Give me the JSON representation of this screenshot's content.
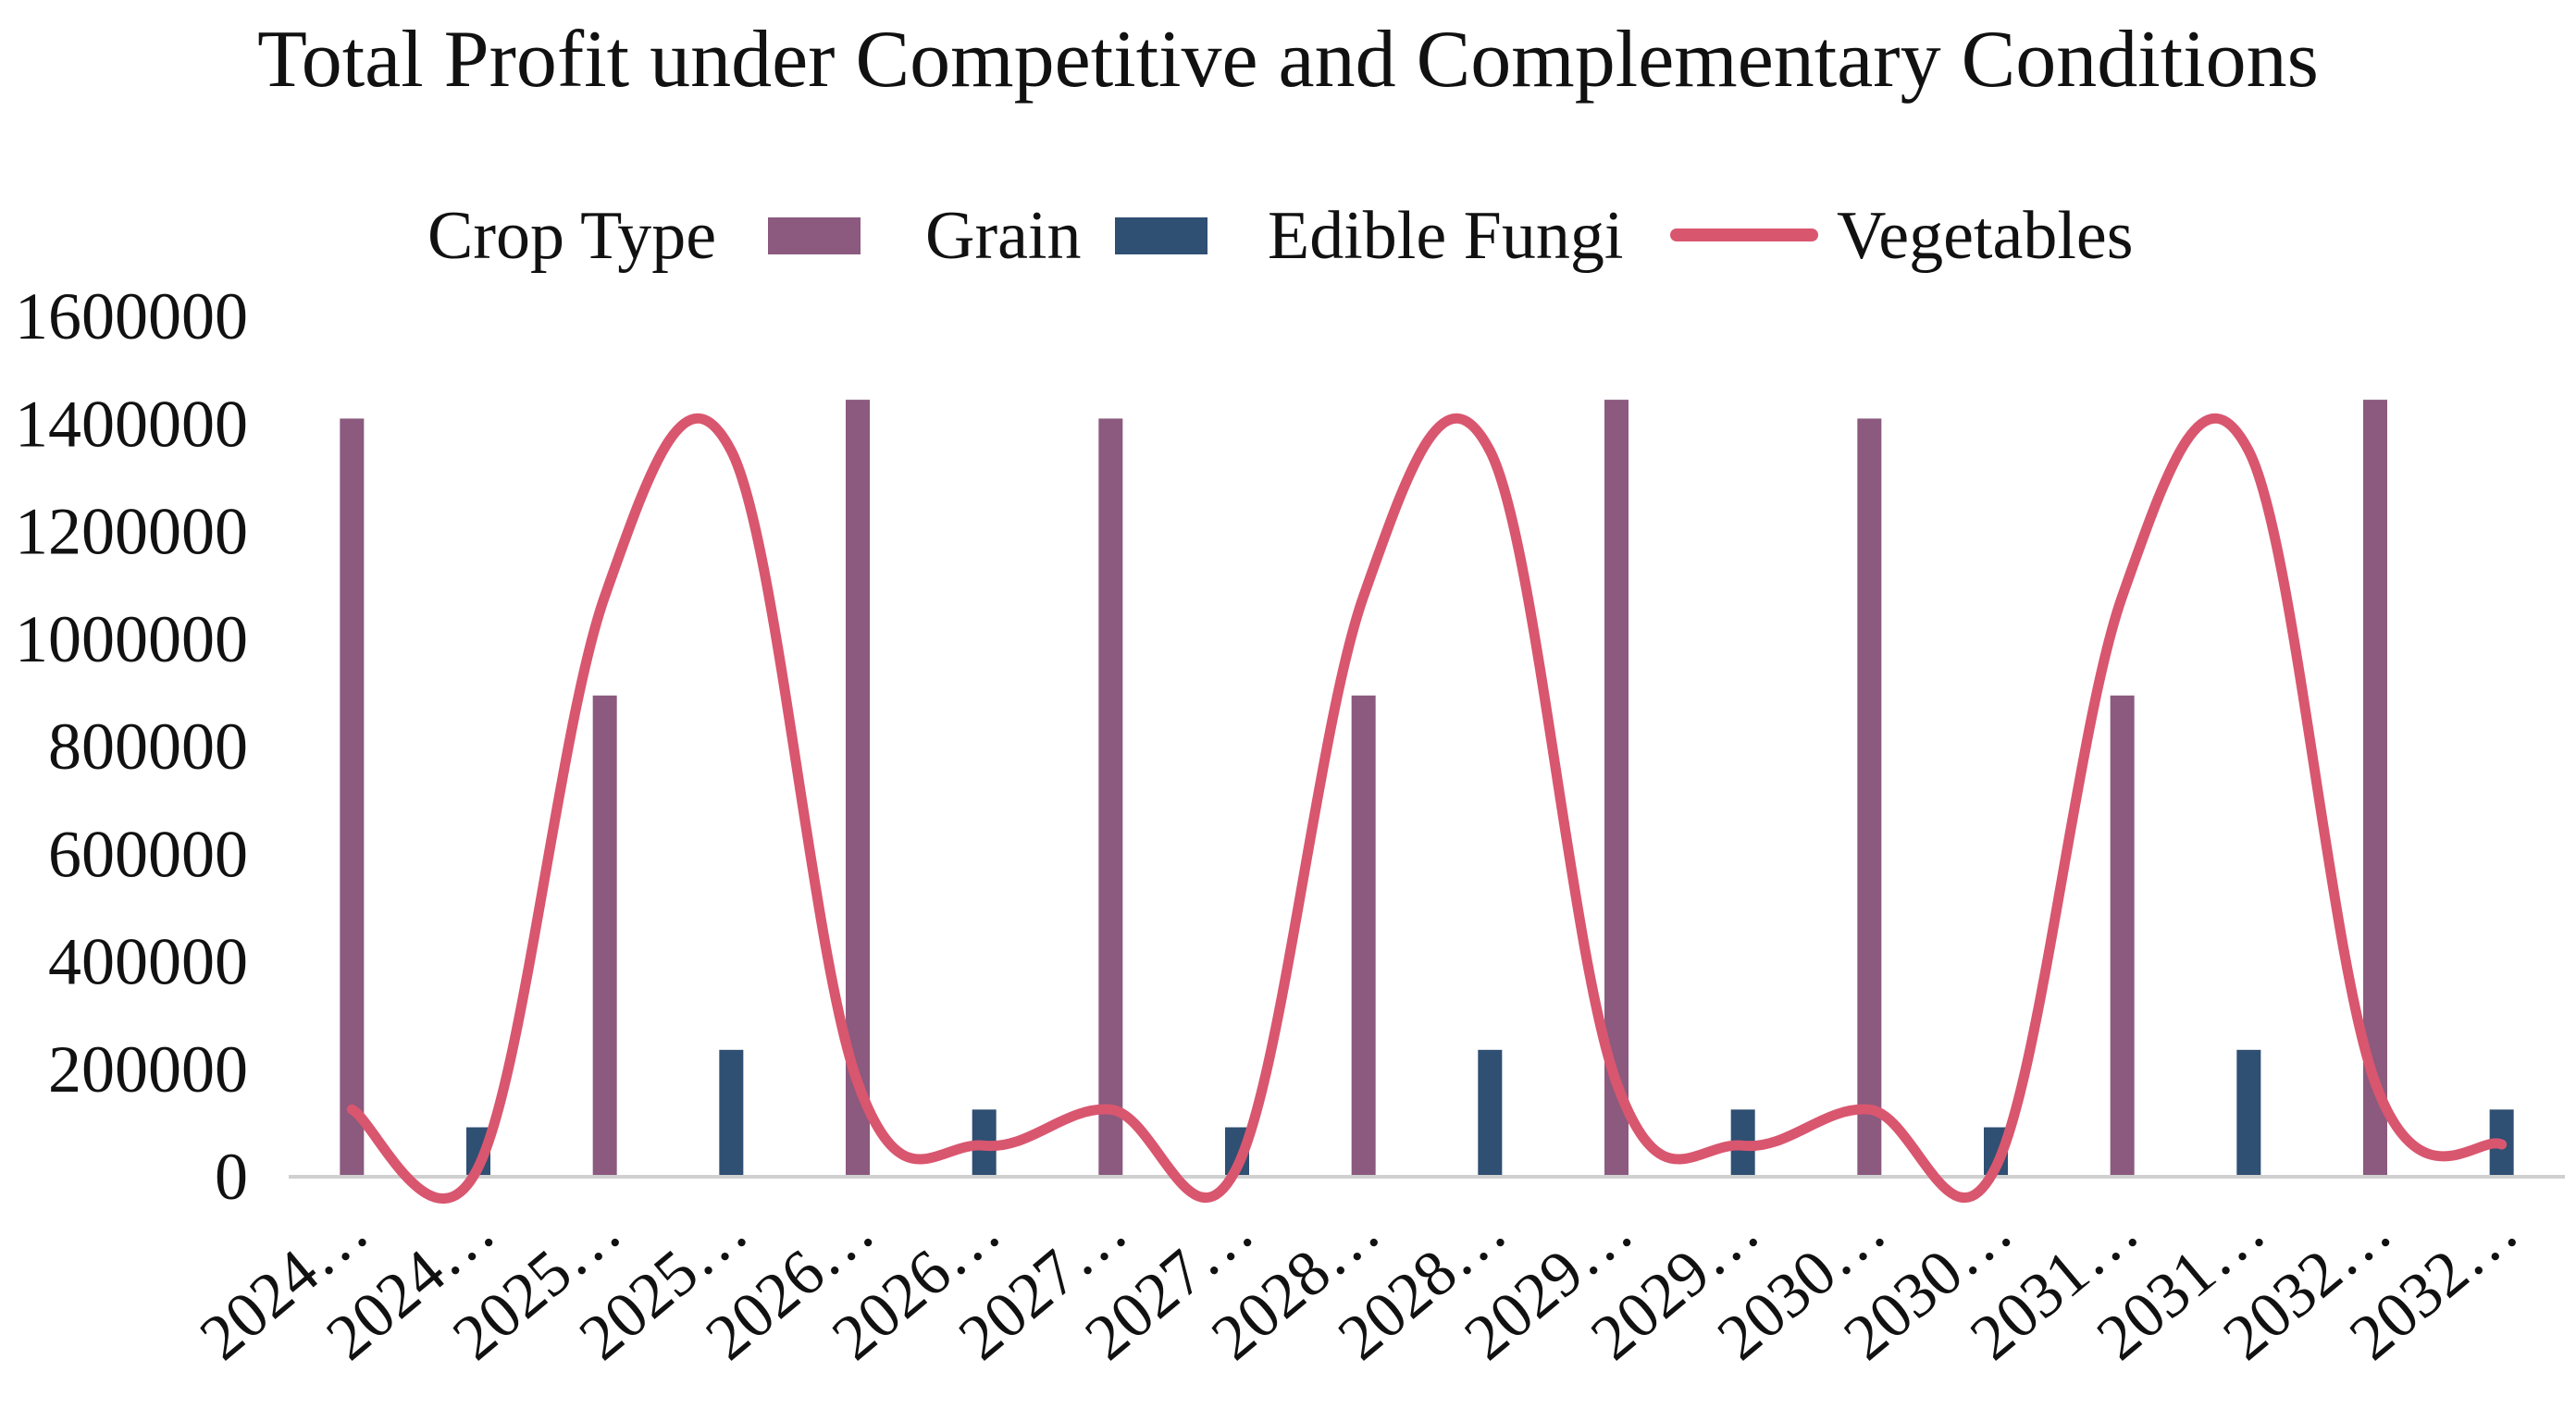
{
  "chart_data": {
    "type": "bar",
    "title": "Total Profit under Competitive and Complementary Conditions",
    "legend": {
      "title": "Crop Type",
      "position": "top-center",
      "entries": [
        {
          "name": "Grain",
          "mark": "bar"
        },
        {
          "name": "Edible Fungi",
          "mark": "bar"
        },
        {
          "name": "Vegetables",
          "mark": "line"
        }
      ]
    },
    "xlabel": "",
    "ylabel": "",
    "ylim": [
      0,
      1600000
    ],
    "yticks": [
      "0",
      "200000",
      "400000",
      "600000",
      "800000",
      "1000000",
      "1200000",
      "1400000",
      "1600000"
    ],
    "categories": [
      "2024…",
      "2024…",
      "2025…",
      "2025…",
      "2026…",
      "2026…",
      "2027…",
      "2027…",
      "2028…",
      "2028…",
      "2029…",
      "2029…",
      "2030…",
      "2030…",
      "2031…",
      "2031…",
      "2032…",
      "2032…"
    ],
    "series": [
      {
        "name": "Grain",
        "type": "bar",
        "color": "#8B5A7E",
        "values": [
          1410000,
          0,
          895000,
          0,
          1445000,
          0,
          1410000,
          0,
          895000,
          0,
          1445000,
          0,
          1410000,
          0,
          895000,
          0,
          1445000,
          0
        ]
      },
      {
        "name": "Edible Fungi",
        "type": "bar",
        "color": "#2F4F73",
        "values": [
          0,
          92000,
          0,
          236000,
          0,
          125000,
          0,
          92000,
          0,
          236000,
          0,
          125000,
          0,
          92000,
          0,
          236000,
          0,
          125000
        ]
      },
      {
        "name": "Vegetables",
        "type": "line",
        "color": "#D9566F",
        "values": [
          125000,
          18000,
          1080000,
          1350000,
          175000,
          58000,
          125000,
          18000,
          1080000,
          1350000,
          175000,
          58000,
          125000,
          18000,
          1080000,
          1350000,
          175000,
          60000
        ]
      }
    ],
    "grid": false
  }
}
